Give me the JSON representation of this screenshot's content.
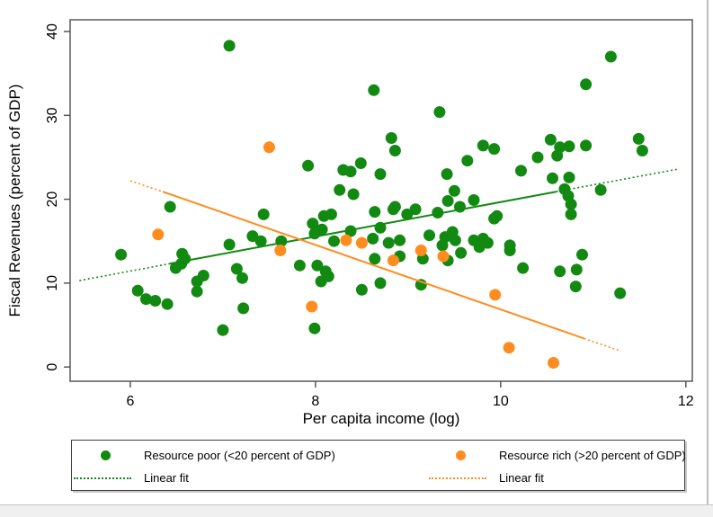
{
  "window": {
    "bg_color": "#ffffff",
    "frame_color": "#4d4d4d",
    "outer_border_color": "#bdbdbd",
    "bottom_strip_color": "#f0f0f0"
  },
  "chart_data": {
    "type": "scatter",
    "title": "",
    "xlabel": "Per capita income (log)",
    "ylabel": "Fiscal Revenues (percent of GDP)",
    "xticks": [
      6,
      8,
      10,
      12
    ],
    "yticks": [
      0,
      10,
      20,
      30,
      40
    ],
    "xlim": [
      5.35,
      12.07
    ],
    "ylim": [
      -1.7,
      41.4
    ],
    "grid": false,
    "colors": {
      "resource_poor": "#128a12",
      "resource_rich": "#ff8c1e"
    },
    "series": [
      {
        "name": "Resource poor (<20 percent of GDP)",
        "color": "#128a12",
        "marker": "circle",
        "points": [
          [
            7.07,
            38.3
          ],
          [
            11.19,
            37.0
          ],
          [
            10.92,
            33.7
          ],
          [
            8.63,
            33.0
          ],
          [
            9.34,
            30.4
          ],
          [
            8.82,
            27.3
          ],
          [
            10.54,
            27.1
          ],
          [
            11.49,
            27.2
          ],
          [
            9.81,
            26.4
          ],
          [
            10.92,
            26.4
          ],
          [
            10.74,
            26.3
          ],
          [
            10.64,
            26.2
          ],
          [
            9.93,
            26.0
          ],
          [
            8.86,
            25.8
          ],
          [
            11.53,
            25.8
          ],
          [
            10.61,
            25.2
          ],
          [
            10.4,
            25.0
          ],
          [
            9.64,
            24.6
          ],
          [
            8.49,
            24.3
          ],
          [
            7.92,
            24.0
          ],
          [
            8.3,
            23.5
          ],
          [
            10.22,
            23.4
          ],
          [
            8.38,
            23.3
          ],
          [
            8.7,
            23.0
          ],
          [
            9.42,
            23.0
          ],
          [
            10.56,
            22.5
          ],
          [
            10.74,
            22.6
          ],
          [
            8.26,
            21.1
          ],
          [
            9.5,
            21.0
          ],
          [
            10.69,
            21.2
          ],
          [
            11.08,
            21.1
          ],
          [
            8.41,
            20.6
          ],
          [
            10.73,
            20.4
          ],
          [
            9.43,
            19.8
          ],
          [
            9.71,
            19.9
          ],
          [
            10.76,
            19.4
          ],
          [
            6.43,
            19.1
          ],
          [
            9.56,
            19.1
          ],
          [
            8.86,
            19.1
          ],
          [
            9.08,
            18.8
          ],
          [
            8.84,
            18.8
          ],
          [
            9.32,
            18.4
          ],
          [
            8.64,
            18.5
          ],
          [
            7.44,
            18.2
          ],
          [
            8.17,
            18.2
          ],
          [
            8.99,
            18.2
          ],
          [
            10.76,
            18.2
          ],
          [
            9.96,
            18.0
          ],
          [
            8.09,
            18.0
          ],
          [
            9.93,
            17.7
          ],
          [
            7.97,
            17.1
          ],
          [
            8.7,
            16.6
          ],
          [
            8.07,
            16.4
          ],
          [
            8.38,
            16.2
          ],
          [
            9.48,
            16.1
          ],
          [
            7.99,
            15.9
          ],
          [
            9.23,
            15.7
          ],
          [
            7.32,
            15.6
          ],
          [
            9.4,
            15.5
          ],
          [
            8.62,
            15.3
          ],
          [
            9.81,
            15.3
          ],
          [
            7.63,
            15.0
          ],
          [
            8.2,
            15.0
          ],
          [
            7.41,
            15.0
          ],
          [
            9.51,
            15.1
          ],
          [
            9.71,
            15.1
          ],
          [
            8.91,
            15.1
          ],
          [
            8.79,
            14.8
          ],
          [
            9.86,
            14.8
          ],
          [
            7.07,
            14.6
          ],
          [
            9.37,
            14.5
          ],
          [
            10.1,
            14.5
          ],
          [
            9.77,
            14.3
          ],
          [
            10.1,
            13.9
          ],
          [
            9.57,
            13.6
          ],
          [
            6.56,
            13.5
          ],
          [
            5.9,
            13.4
          ],
          [
            10.88,
            13.4
          ],
          [
            8.91,
            13.2
          ],
          [
            8.64,
            12.9
          ],
          [
            6.59,
            12.9
          ],
          [
            9.16,
            12.9
          ],
          [
            9.43,
            12.7
          ],
          [
            6.55,
            12.3
          ],
          [
            7.83,
            12.1
          ],
          [
            8.02,
            12.1
          ],
          [
            6.49,
            11.8
          ],
          [
            10.24,
            11.8
          ],
          [
            7.15,
            11.7
          ],
          [
            10.82,
            11.6
          ],
          [
            8.11,
            11.4
          ],
          [
            10.64,
            11.4
          ],
          [
            7.21,
            10.6
          ],
          [
            8.14,
            10.8
          ],
          [
            6.79,
            10.9
          ],
          [
            8.06,
            10.2
          ],
          [
            6.72,
            10.2
          ],
          [
            8.7,
            10.0
          ],
          [
            9.14,
            9.8
          ],
          [
            10.81,
            9.6
          ],
          [
            8.5,
            9.2
          ],
          [
            6.08,
            9.1
          ],
          [
            6.72,
            9.0
          ],
          [
            11.29,
            8.8
          ],
          [
            6.17,
            8.1
          ],
          [
            6.27,
            7.9
          ],
          [
            6.4,
            7.5
          ],
          [
            7.22,
            7.0
          ],
          [
            7.99,
            4.6
          ],
          [
            7.0,
            4.4
          ]
        ]
      },
      {
        "name": "Resource rich (>20 percent of GDP)",
        "color": "#ff8c1e",
        "marker": "circle",
        "points": [
          [
            7.5,
            26.2
          ],
          [
            6.3,
            15.8
          ],
          [
            8.33,
            15.1
          ],
          [
            8.5,
            14.8
          ],
          [
            7.62,
            13.9
          ],
          [
            9.14,
            13.9
          ],
          [
            9.38,
            13.2
          ],
          [
            8.84,
            12.7
          ],
          [
            9.94,
            8.6
          ],
          [
            7.96,
            7.2
          ],
          [
            10.09,
            2.3
          ],
          [
            10.57,
            0.5
          ]
        ]
      }
    ],
    "fit_lines": [
      {
        "name": "Linear fit",
        "for_series": "Resource poor (<20 percent of GDP)",
        "color": "#128a12",
        "segments": [
          {
            "x1": 5.45,
            "y1": 10.3,
            "x2": 6.42,
            "y2": 12.3,
            "style": "dotted"
          },
          {
            "x1": 6.42,
            "y1": 12.3,
            "x2": 10.6,
            "y2": 20.9,
            "style": "solid"
          },
          {
            "x1": 10.6,
            "y1": 20.9,
            "x2": 11.92,
            "y2": 23.6,
            "style": "dotted"
          }
        ]
      },
      {
        "name": "Linear fit",
        "for_series": "Resource rich (>20 percent of GDP)",
        "color": "#ff8c1e",
        "segments": [
          {
            "x1": 6.0,
            "y1": 22.2,
            "x2": 6.35,
            "y2": 20.9,
            "style": "dotted"
          },
          {
            "x1": 6.35,
            "y1": 20.9,
            "x2": 10.9,
            "y2": 3.4,
            "style": "solid"
          },
          {
            "x1": 10.9,
            "y1": 3.4,
            "x2": 11.3,
            "y2": 1.9,
            "style": "dotted"
          }
        ]
      }
    ],
    "legend": {
      "position": "bottom",
      "entries": [
        {
          "label": "Resource poor (<20 percent of GDP)",
          "marker": "dot",
          "color": "#128a12"
        },
        {
          "label": "Linear fit",
          "marker": "dotted-line",
          "color": "#128a12"
        },
        {
          "label": "Resource rich (>20 percent of GDP)",
          "marker": "dot",
          "color": "#ff8c1e"
        },
        {
          "label": "Linear fit",
          "marker": "dotted-line",
          "color": "#ff8c1e"
        }
      ]
    }
  }
}
